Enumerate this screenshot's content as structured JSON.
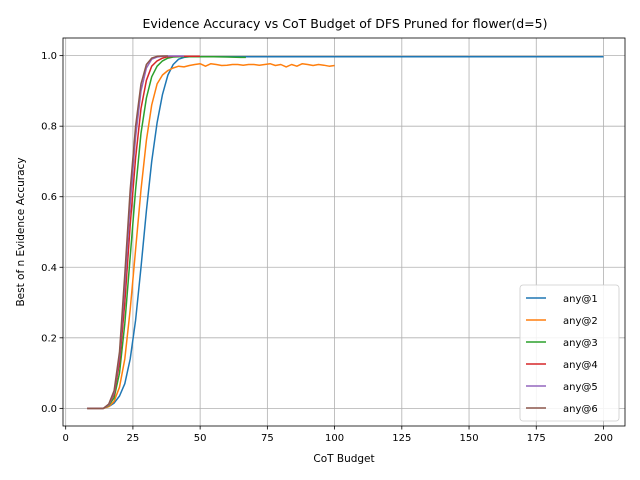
{
  "chart_data": {
    "type": "line",
    "title": "Evidence Accuracy vs CoT Budget of DFS Pruned for flower(d=5)",
    "xlabel": "CoT Budget",
    "ylabel": "Best of n Evidence Accuracy",
    "xlim": [
      -1,
      208
    ],
    "ylim": [
      -0.05,
      1.05
    ],
    "xticks": [
      0,
      25,
      50,
      75,
      100,
      125,
      150,
      175,
      200
    ],
    "yticks": [
      0.0,
      0.2,
      0.4,
      0.6,
      0.8,
      1.0
    ],
    "grid": true,
    "legend_position": "lower-right",
    "series": [
      {
        "name": "any@1",
        "color": "#1f77b4",
        "x": [
          8,
          10,
          12,
          14,
          16,
          18,
          20,
          22,
          24,
          26,
          28,
          30,
          32,
          34,
          36,
          38,
          40,
          42,
          44,
          46,
          50,
          60,
          80,
          100,
          125,
          150,
          175,
          200
        ],
        "y": [
          0,
          0,
          0,
          0,
          0.005,
          0.015,
          0.035,
          0.07,
          0.14,
          0.25,
          0.4,
          0.56,
          0.7,
          0.81,
          0.89,
          0.945,
          0.975,
          0.99,
          0.995,
          0.997,
          0.997,
          0.997,
          0.997,
          0.997,
          0.997,
          0.997,
          0.997,
          0.997
        ]
      },
      {
        "name": "any@2",
        "color": "#ff7f0e",
        "x": [
          8,
          10,
          12,
          14,
          16,
          18,
          20,
          22,
          24,
          26,
          28,
          30,
          32,
          34,
          36,
          38,
          40,
          42,
          44,
          46,
          48,
          50,
          52,
          54,
          56,
          58,
          60,
          62,
          64,
          66,
          68,
          70,
          72,
          74,
          76,
          78,
          80,
          82,
          84,
          86,
          88,
          90,
          92,
          94,
          96,
          98,
          100
        ],
        "y": [
          0,
          0,
          0,
          0,
          0.005,
          0.02,
          0.06,
          0.14,
          0.28,
          0.45,
          0.62,
          0.76,
          0.86,
          0.92,
          0.945,
          0.958,
          0.965,
          0.97,
          0.968,
          0.972,
          0.975,
          0.977,
          0.97,
          0.977,
          0.975,
          0.972,
          0.973,
          0.975,
          0.975,
          0.973,
          0.975,
          0.975,
          0.973,
          0.975,
          0.977,
          0.972,
          0.975,
          0.968,
          0.975,
          0.97,
          0.977,
          0.975,
          0.972,
          0.975,
          0.973,
          0.97,
          0.972
        ]
      },
      {
        "name": "any@3",
        "color": "#2ca02c",
        "x": [
          8,
          10,
          12,
          14,
          16,
          18,
          20,
          22,
          24,
          26,
          28,
          30,
          32,
          34,
          36,
          38,
          40,
          42,
          44,
          46,
          50,
          55,
          60,
          65,
          67
        ],
        "y": [
          0,
          0,
          0,
          0,
          0.008,
          0.03,
          0.1,
          0.24,
          0.43,
          0.62,
          0.78,
          0.88,
          0.94,
          0.97,
          0.985,
          0.993,
          0.996,
          0.997,
          0.997,
          0.997,
          0.997,
          0.997,
          0.996,
          0.995,
          0.995
        ]
      },
      {
        "name": "any@4",
        "color": "#d62728",
        "x": [
          8,
          10,
          12,
          14,
          16,
          18,
          20,
          22,
          24,
          26,
          28,
          30,
          32,
          34,
          36,
          38,
          40,
          42,
          44,
          46,
          48,
          50
        ],
        "y": [
          0,
          0,
          0,
          0,
          0.01,
          0.04,
          0.13,
          0.3,
          0.52,
          0.71,
          0.85,
          0.93,
          0.97,
          0.985,
          0.993,
          0.997,
          0.998,
          0.998,
          0.998,
          0.998,
          0.998,
          0.998
        ]
      },
      {
        "name": "any@5",
        "color": "#9467bd",
        "x": [
          8,
          10,
          12,
          14,
          16,
          18,
          20,
          22,
          24,
          26,
          28,
          30,
          32,
          34,
          36,
          38,
          40,
          42,
          44
        ],
        "y": [
          0,
          0,
          0,
          0,
          0.01,
          0.045,
          0.15,
          0.35,
          0.58,
          0.77,
          0.9,
          0.965,
          0.99,
          0.996,
          0.998,
          0.999,
          0.999,
          0.999,
          0.999
        ]
      },
      {
        "name": "any@6",
        "color": "#8c564b",
        "x": [
          8,
          10,
          12,
          14,
          16,
          18,
          20,
          22,
          24,
          26,
          28,
          30,
          32,
          34,
          36,
          38
        ],
        "y": [
          0,
          0,
          0,
          0,
          0.012,
          0.05,
          0.16,
          0.38,
          0.62,
          0.8,
          0.92,
          0.975,
          0.993,
          0.998,
          0.999,
          0.999
        ]
      }
    ]
  }
}
